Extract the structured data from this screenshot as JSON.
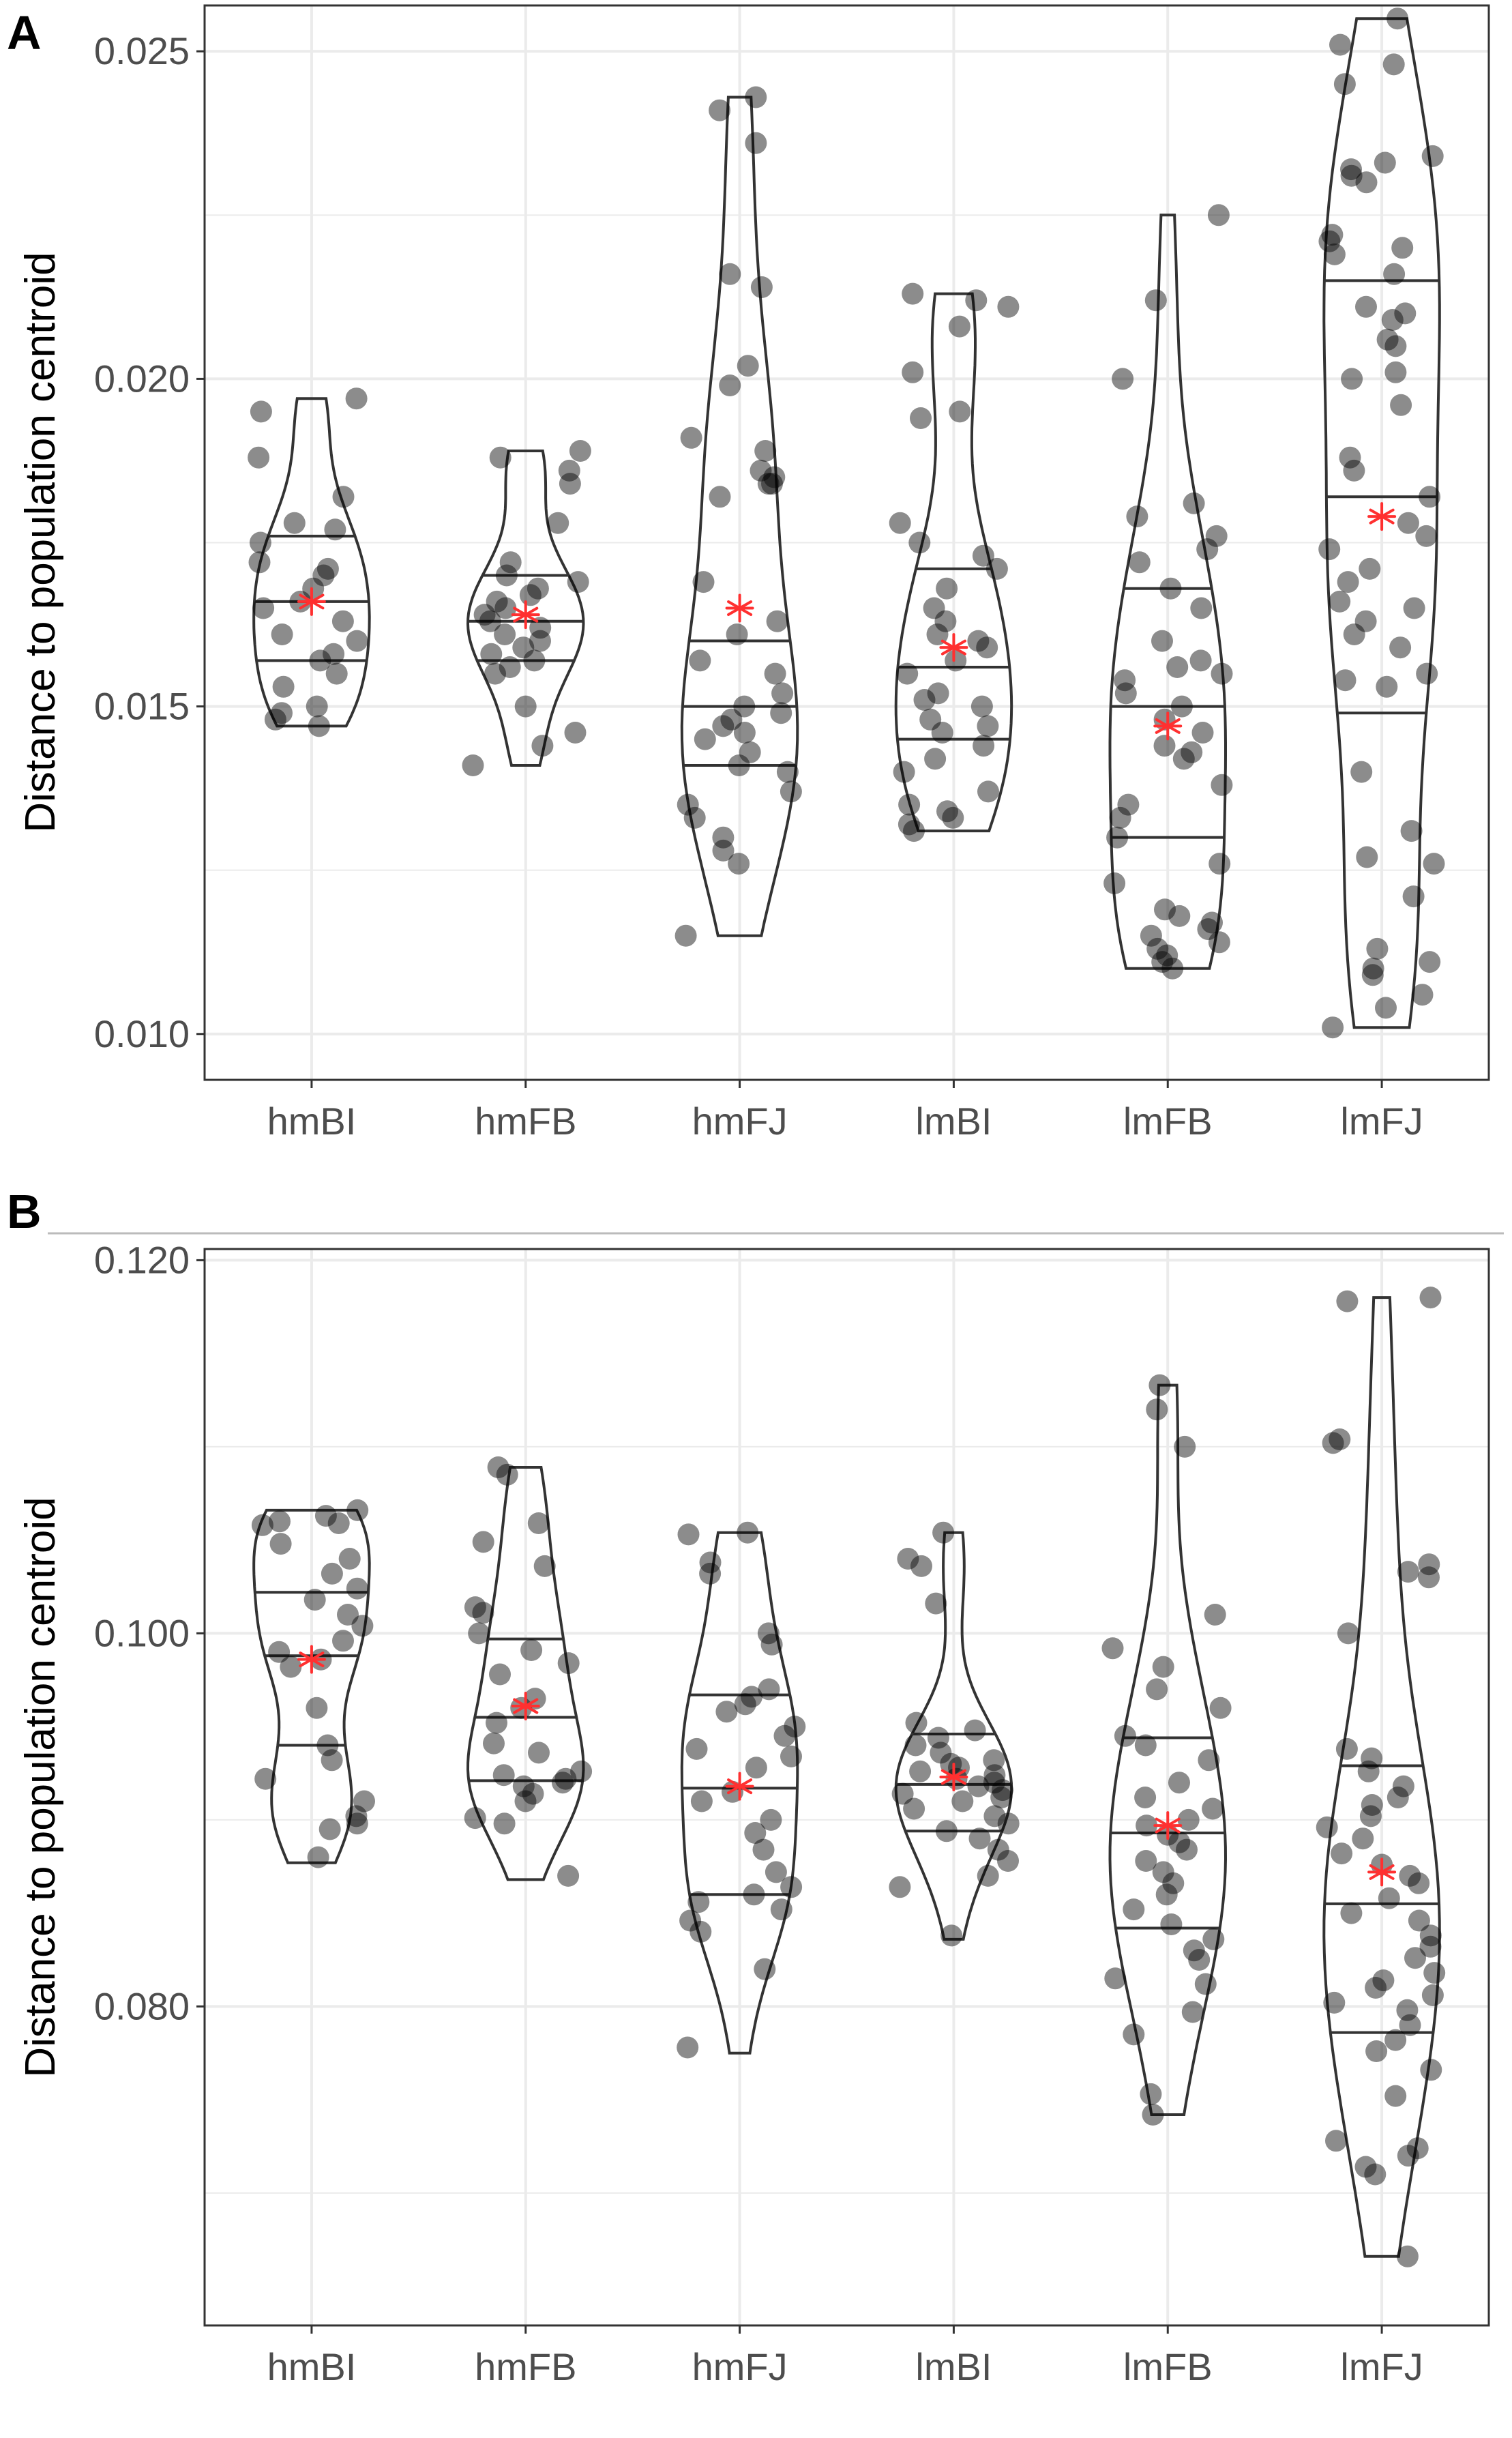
{
  "figure_labels": [
    "A",
    "B"
  ],
  "chart_data": [
    {
      "panel": "A",
      "type": "violin",
      "xlabel": "",
      "ylabel": "Distance to population centroid",
      "categories": [
        "hmBI",
        "hmFB",
        "hmFJ",
        "lmBI",
        "lmFB",
        "lmFJ"
      ],
      "ylim": [
        0.0093,
        0.0257
      ],
      "yticks": [
        0.01,
        0.015,
        0.02,
        0.025
      ],
      "ytick_labels": [
        "0.010",
        "0.015",
        "0.020",
        "0.025"
      ],
      "grid": true,
      "groups": [
        {
          "name": "hmBI",
          "min": 0.0147,
          "max": 0.0197,
          "q1": 0.0157,
          "median": 0.0166,
          "q3": 0.0176,
          "mean": 0.0166,
          "points": [
            0.0195,
            0.0197,
            0.0188,
            0.0182,
            0.0178,
            0.0177,
            0.0175,
            0.0172,
            0.0171,
            0.017,
            0.0168,
            0.0166,
            0.0165,
            0.0163,
            0.0161,
            0.016,
            0.0158,
            0.0157,
            0.0155,
            0.0153,
            0.015,
            0.0149,
            0.0148,
            0.0147
          ]
        },
        {
          "name": "hmFB",
          "min": 0.0141,
          "max": 0.0189,
          "q1": 0.0157,
          "median": 0.0163,
          "q3": 0.017,
          "mean": 0.0164,
          "points": [
            0.0189,
            0.0188,
            0.0186,
            0.0184,
            0.0178,
            0.0172,
            0.017,
            0.0169,
            0.0168,
            0.0167,
            0.0166,
            0.0165,
            0.0164,
            0.0163,
            0.0162,
            0.0161,
            0.016,
            0.0159,
            0.0158,
            0.0157,
            0.0156,
            0.0155,
            0.015,
            0.0146,
            0.0144,
            0.0141
          ]
        },
        {
          "name": "hmFJ",
          "min": 0.0115,
          "max": 0.0243,
          "q1": 0.0141,
          "median": 0.015,
          "q3": 0.016,
          "mean": 0.0165,
          "points": [
            0.0243,
            0.0241,
            0.0236,
            0.0216,
            0.0214,
            0.0202,
            0.0199,
            0.0191,
            0.0189,
            0.0186,
            0.0185,
            0.0184,
            0.0184,
            0.0182,
            0.0169,
            0.0163,
            0.0161,
            0.0157,
            0.0155,
            0.0152,
            0.015,
            0.0149,
            0.0148,
            0.0147,
            0.0146,
            0.0145,
            0.0143,
            0.0141,
            0.014,
            0.0137,
            0.0135,
            0.0133,
            0.013,
            0.0128,
            0.0126,
            0.0115
          ]
        },
        {
          "name": "lmBI",
          "min": 0.0131,
          "max": 0.0213,
          "q1": 0.0145,
          "median": 0.0156,
          "q3": 0.0171,
          "mean": 0.0159,
          "points": [
            0.0213,
            0.0212,
            0.0211,
            0.0208,
            0.0201,
            0.0195,
            0.0194,
            0.0178,
            0.0175,
            0.0173,
            0.0171,
            0.0168,
            0.0165,
            0.0163,
            0.0161,
            0.016,
            0.0159,
            0.0157,
            0.0155,
            0.0152,
            0.0151,
            0.015,
            0.0148,
            0.0147,
            0.0146,
            0.0144,
            0.0142,
            0.014,
            0.0137,
            0.0135,
            0.0134,
            0.0133,
            0.0132,
            0.0131
          ]
        },
        {
          "name": "lmFB",
          "min": 0.011,
          "max": 0.0225,
          "q1": 0.013,
          "median": 0.015,
          "q3": 0.0168,
          "mean": 0.0147,
          "points": [
            0.0225,
            0.0212,
            0.02,
            0.0181,
            0.0179,
            0.0176,
            0.0174,
            0.0172,
            0.0168,
            0.0165,
            0.016,
            0.0157,
            0.0156,
            0.0155,
            0.0154,
            0.0152,
            0.015,
            0.0148,
            0.0146,
            0.0144,
            0.0143,
            0.0142,
            0.0138,
            0.0135,
            0.0133,
            0.013,
            0.0126,
            0.0123,
            0.0119,
            0.0118,
            0.0117,
            0.0116,
            0.0115,
            0.0114,
            0.0113,
            0.0112,
            0.0111,
            0.011
          ]
        },
        {
          "name": "lmFJ",
          "min": 0.0101,
          "max": 0.0255,
          "q1": 0.0149,
          "median": 0.0182,
          "q3": 0.0215,
          "mean": 0.0179,
          "points": [
            0.0255,
            0.0251,
            0.0248,
            0.0245,
            0.0234,
            0.0233,
            0.0232,
            0.0231,
            0.023,
            0.0222,
            0.0221,
            0.022,
            0.0219,
            0.0216,
            0.0211,
            0.021,
            0.0209,
            0.0206,
            0.0205,
            0.0201,
            0.02,
            0.0196,
            0.0188,
            0.0186,
            0.0182,
            0.0178,
            0.0176,
            0.0174,
            0.0171,
            0.0169,
            0.0166,
            0.0165,
            0.0163,
            0.0161,
            0.0159,
            0.0155,
            0.0154,
            0.0153,
            0.014,
            0.0131,
            0.0127,
            0.0126,
            0.0121,
            0.0113,
            0.0111,
            0.011,
            0.0109,
            0.0106,
            0.0104,
            0.0101
          ]
        }
      ]
    },
    {
      "panel": "B",
      "type": "violin",
      "xlabel": "",
      "ylabel": "Distance to population centroid",
      "categories": [
        "hmBI",
        "hmFB",
        "hmFJ",
        "lmBI",
        "lmFB",
        "lmFJ"
      ],
      "ylim": [
        0.0629,
        0.1206
      ],
      "yticks": [
        0.08,
        0.1,
        0.12
      ],
      "ytick_labels": [
        "0.080",
        "0.100",
        "0.120"
      ],
      "grid": true,
      "groups": [
        {
          "name": "hmBI",
          "min": 0.0877,
          "max": 0.1066,
          "q1": 0.094,
          "median": 0.0988,
          "q3": 0.1022,
          "mean": 0.0986,
          "points": [
            0.1066,
            0.1063,
            0.106,
            0.1059,
            0.1058,
            0.1048,
            0.104,
            0.1032,
            0.1024,
            0.1018,
            0.101,
            0.1004,
            0.0996,
            0.099,
            0.0986,
            0.0982,
            0.096,
            0.094,
            0.0932,
            0.0922,
            0.091,
            0.0902,
            0.0898,
            0.0895,
            0.088
          ]
        },
        {
          "name": "hmFB",
          "min": 0.0868,
          "max": 0.1089,
          "q1": 0.0921,
          "median": 0.0955,
          "q3": 0.0997,
          "mean": 0.0961,
          "points": [
            0.1089,
            0.1085,
            0.1059,
            0.1049,
            0.1036,
            0.1014,
            0.1011,
            0.1,
            0.0991,
            0.0984,
            0.0978,
            0.0965,
            0.096,
            0.0952,
            0.0941,
            0.0936,
            0.0926,
            0.0924,
            0.0922,
            0.092,
            0.0918,
            0.0914,
            0.091,
            0.0901,
            0.0898,
            0.087
          ]
        },
        {
          "name": "hmFJ",
          "min": 0.0775,
          "max": 0.1054,
          "q1": 0.086,
          "median": 0.0917,
          "q3": 0.0967,
          "mean": 0.0918,
          "points": [
            0.1054,
            0.1053,
            0.1038,
            0.1032,
            0.1,
            0.0994,
            0.097,
            0.0966,
            0.0962,
            0.0958,
            0.095,
            0.0945,
            0.0938,
            0.0934,
            0.0928,
            0.0915,
            0.091,
            0.09,
            0.0893,
            0.0884,
            0.0872,
            0.0864,
            0.086,
            0.0856,
            0.0852,
            0.0846,
            0.084,
            0.082,
            0.0778
          ]
        },
        {
          "name": "lmBI",
          "min": 0.0836,
          "max": 0.1054,
          "q1": 0.0894,
          "median": 0.0919,
          "q3": 0.0946,
          "mean": 0.0923,
          "points": [
            0.1054,
            0.104,
            0.1036,
            0.1016,
            0.0952,
            0.0948,
            0.0944,
            0.094,
            0.0936,
            0.0932,
            0.093,
            0.0928,
            0.0926,
            0.0924,
            0.0922,
            0.092,
            0.0918,
            0.0916,
            0.0914,
            0.0912,
            0.091,
            0.0906,
            0.0902,
            0.0898,
            0.0894,
            0.089,
            0.0884,
            0.0878,
            0.087,
            0.0864,
            0.0838
          ]
        },
        {
          "name": "lmFB",
          "min": 0.0742,
          "max": 0.1133,
          "q1": 0.0842,
          "median": 0.0893,
          "q3": 0.0944,
          "mean": 0.0897,
          "points": [
            0.1133,
            0.112,
            0.11,
            0.101,
            0.0992,
            0.0982,
            0.097,
            0.096,
            0.0945,
            0.094,
            0.0932,
            0.092,
            0.0912,
            0.0906,
            0.09,
            0.0897,
            0.0892,
            0.0888,
            0.0884,
            0.0878,
            0.0872,
            0.0866,
            0.086,
            0.0852,
            0.0844,
            0.0836,
            0.083,
            0.0825,
            0.0815,
            0.0812,
            0.0797,
            0.0785,
            0.0753,
            0.0742
          ]
        },
        {
          "name": "lmFJ",
          "min": 0.0666,
          "max": 0.118,
          "q1": 0.0786,
          "median": 0.0855,
          "q3": 0.0929,
          "mean": 0.0872,
          "points": [
            0.118,
            0.1178,
            0.1104,
            0.1102,
            0.1037,
            0.1033,
            0.103,
            0.1,
            0.0938,
            0.0933,
            0.0926,
            0.0918,
            0.0912,
            0.0908,
            0.0902,
            0.0896,
            0.089,
            0.0882,
            0.0876,
            0.087,
            0.0866,
            0.0858,
            0.085,
            0.0846,
            0.0838,
            0.0832,
            0.0826,
            0.0818,
            0.0814,
            0.081,
            0.0806,
            0.0802,
            0.0798,
            0.079,
            0.0782,
            0.0776,
            0.0766,
            0.0752,
            0.0728,
            0.0724,
            0.072,
            0.0714,
            0.071,
            0.0666
          ]
        }
      ]
    }
  ],
  "colors": {
    "point": "#000000",
    "mean_marker": "#ff3030",
    "violin_stroke": "#333333",
    "grid": "#ebebeb",
    "panel_border": "#333333",
    "tick_text": "#4d4d4d",
    "separator": "#bbbbbb"
  }
}
